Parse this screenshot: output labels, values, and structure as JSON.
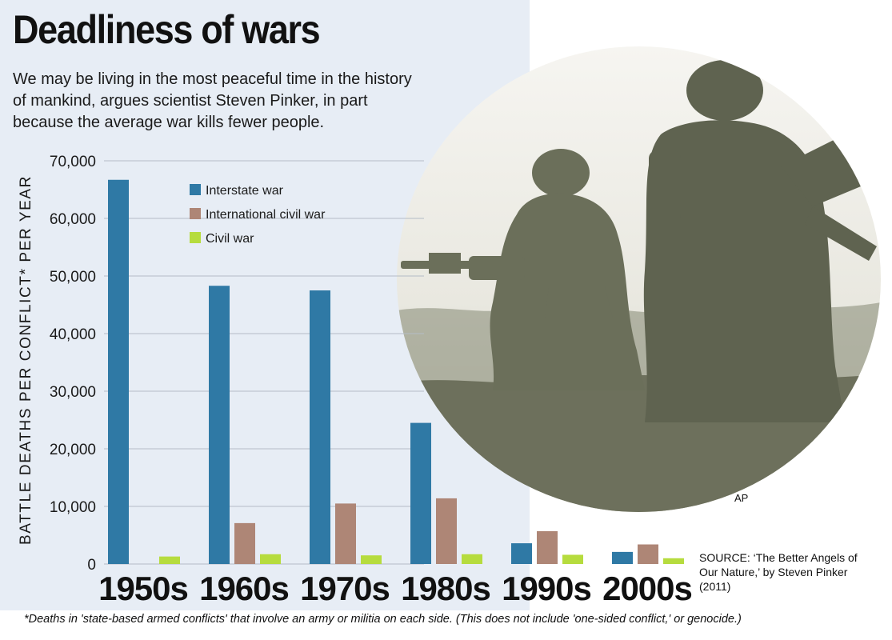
{
  "title": "Deadliness of wars",
  "subtitle": "We may be living in the most peaceful time in the history of mankind, argues scientist Steven Pinker, in part because the average war kills fewer people.",
  "photo_credit": "AP",
  "source": "SOURCE: ‘The Better Angels of Our Nature,’ by Steven Pinker (2011)",
  "footnote": "*Deaths in 'state-based armed conflicts' that involve an army or militia on each side. (This does not include 'one-sided conflict,' or genocide.)",
  "colors": {
    "panel": "#e7edf5",
    "interstate": "#2f79a5",
    "international_civil": "#ae8676",
    "civil": "#b6dc3e",
    "photo_sky": "#f3f1ec",
    "photo_dark": "#6f735f"
  },
  "chart_data": {
    "type": "bar",
    "title": "Deadliness of wars",
    "xlabel": "",
    "ylabel": "BATTLE DEATHS PER CONFLICT* PER YEAR",
    "ylim": [
      0,
      70000
    ],
    "yticks": [
      0,
      10000,
      20000,
      30000,
      40000,
      50000,
      60000,
      70000
    ],
    "ytick_labels": [
      "0",
      "10,000",
      "20,000",
      "30,000",
      "40,000",
      "50,000",
      "60,000",
      "70,000"
    ],
    "categories": [
      "1950s",
      "1960s",
      "1970s",
      "1980s",
      "1990s",
      "2000s"
    ],
    "series": [
      {
        "name": "Interstate war",
        "color": "#2f79a5",
        "values": [
          66700,
          48300,
          47500,
          24500,
          3600,
          2100
        ]
      },
      {
        "name": "International civil war",
        "color": "#ae8676",
        "values": [
          0,
          7100,
          10500,
          11400,
          5700,
          3400
        ]
      },
      {
        "name": "Civil war",
        "color": "#b6dc3e",
        "values": [
          1300,
          1700,
          1500,
          1700,
          1600,
          1000
        ]
      }
    ],
    "legend_position": "top-center",
    "grid": true
  }
}
